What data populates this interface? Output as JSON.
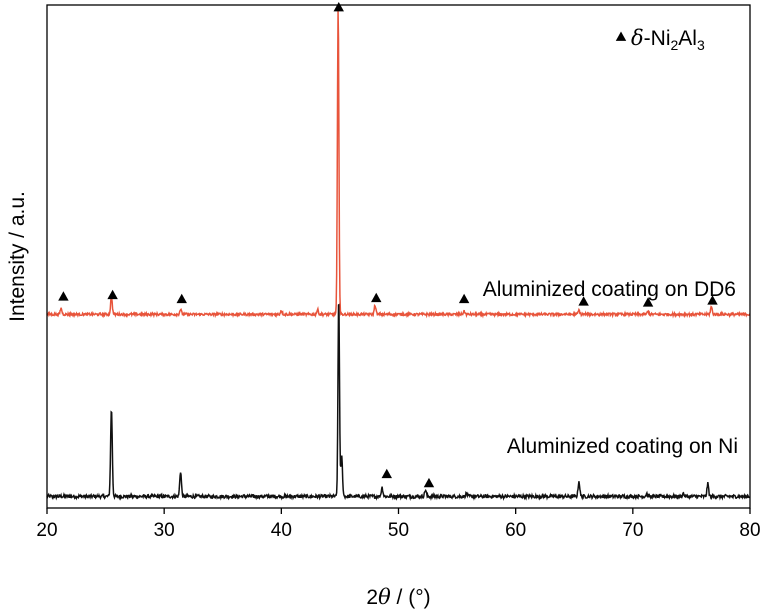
{
  "chart_data": {
    "type": "line",
    "title": "",
    "xlabel": {
      "prefix": "2",
      "symbol": "θ",
      "suffix": " / (°)"
    },
    "ylabel": "Intensity / a.u.",
    "xlim": [
      20,
      80
    ],
    "ylim": [
      0,
      100
    ],
    "x_ticks": [
      "20",
      "30",
      "40",
      "50",
      "60",
      "70",
      "80"
    ],
    "y_ticks_labelled": false,
    "grid": false,
    "legend": {
      "position": "top-right",
      "marker": "filled-triangle",
      "symbol": "δ",
      "text": "-Ni",
      "sub1": "2",
      "mid": "Al",
      "sub2": "3"
    },
    "series": [
      {
        "name": "Aluminized coating on Ni",
        "color": "#111111",
        "baseline": 2.3,
        "noise": 0.35,
        "peaks": [
          {
            "x": 25.5,
            "h": 17.5
          },
          {
            "x": 31.4,
            "h": 5.0
          },
          {
            "x": 44.9,
            "h": 40.0
          },
          {
            "x": 45.15,
            "h": 8.0
          },
          {
            "x": 48.6,
            "h": 1.8
          },
          {
            "x": 52.3,
            "h": 1.3
          },
          {
            "x": 55.8,
            "h": 0.6
          },
          {
            "x": 65.4,
            "h": 3.0
          },
          {
            "x": 71.2,
            "h": 0.6
          },
          {
            "x": 74.3,
            "h": 0.6
          },
          {
            "x": 76.4,
            "h": 2.5
          }
        ]
      },
      {
        "name": "Aluminized coating on DD6",
        "color": "#e8543b",
        "baseline": 38.5,
        "noise": 0.25,
        "peaks": [
          {
            "x": 21.2,
            "h": 1.2
          },
          {
            "x": 25.5,
            "h": 3.5
          },
          {
            "x": 31.4,
            "h": 1.0
          },
          {
            "x": 40.0,
            "h": 0.8
          },
          {
            "x": 43.1,
            "h": 0.9
          },
          {
            "x": 44.85,
            "h": 61.0
          },
          {
            "x": 48.0,
            "h": 1.8
          },
          {
            "x": 55.6,
            "h": 0.6
          },
          {
            "x": 65.4,
            "h": 0.8
          },
          {
            "x": 71.3,
            "h": 0.6
          },
          {
            "x": 76.7,
            "h": 1.5
          }
        ]
      }
    ],
    "series_labels": [
      {
        "text": "Aluminized coating on DD6",
        "series": 1
      },
      {
        "text": "Aluminized coating on Ni",
        "series": 0
      }
    ],
    "annotations": {
      "marker": "filled-triangle",
      "points": [
        {
          "x": 21.4,
          "y": 42.0
        },
        {
          "x": 25.6,
          "y": 42.3
        },
        {
          "x": 31.5,
          "y": 41.5
        },
        {
          "x": 44.9,
          "y": 99.5
        },
        {
          "x": 48.1,
          "y": 41.7
        },
        {
          "x": 55.6,
          "y": 41.5
        },
        {
          "x": 65.8,
          "y": 41.0
        },
        {
          "x": 71.3,
          "y": 40.8
        },
        {
          "x": 76.8,
          "y": 41.2
        },
        {
          "x": 49.0,
          "y": 6.7
        },
        {
          "x": 52.6,
          "y": 4.9
        }
      ]
    }
  }
}
